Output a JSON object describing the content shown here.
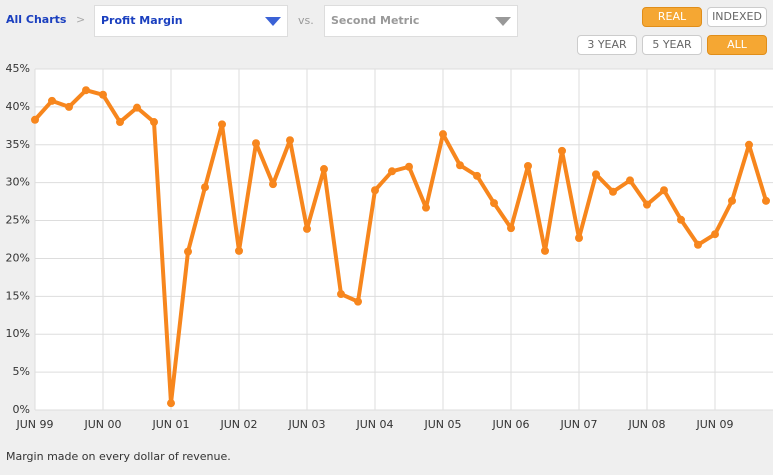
{
  "ui": {
    "breadcrumb": "All Charts",
    "separator": ">",
    "metric": "Profit Margin",
    "vs": "vs.",
    "second_metric": "Second Metric",
    "mode_buttons": [
      "REAL",
      "INDEXED"
    ],
    "range_buttons": [
      "3 YEAR",
      "5 YEAR",
      "ALL"
    ],
    "footer": "Margin made on every dollar of revenue."
  },
  "chart_data": {
    "type": "line",
    "color": "#f7861d",
    "grid": true,
    "categories": [
      "JUN 99",
      null,
      null,
      null,
      "JUN 00",
      null,
      null,
      null,
      "JUN 01",
      null,
      null,
      null,
      "JUN 02",
      null,
      null,
      null,
      "JUN 03",
      null,
      null,
      null,
      "JUN 04",
      null,
      null,
      null,
      "JUN 05",
      null,
      null,
      null,
      "JUN 06",
      null,
      null,
      null,
      "JUN 07",
      null,
      null,
      null,
      "JUN 08",
      null,
      null,
      null,
      "JUN 09",
      null,
      null,
      null
    ],
    "values": [
      38.3,
      40.8,
      40.0,
      42.2,
      41.6,
      38.0,
      39.9,
      38.0,
      0.9,
      20.9,
      29.4,
      37.7,
      21.0,
      35.2,
      29.8,
      35.6,
      23.9,
      31.8,
      15.3,
      14.3,
      29.0,
      31.5,
      32.1,
      26.7,
      36.4,
      32.3,
      30.9,
      27.3,
      24.0,
      32.2,
      21.0,
      34.2,
      22.7,
      31.1,
      28.8,
      30.3,
      27.1,
      29.0,
      25.1,
      21.8,
      23.2,
      27.6,
      35.0,
      27.6
    ],
    "ylim": [
      0,
      45
    ],
    "yticks": [
      {
        "value": 0,
        "label": "0%"
      },
      {
        "value": 5,
        "label": "5%"
      },
      {
        "value": 10,
        "label": "10%"
      },
      {
        "value": 15,
        "label": "15%"
      },
      {
        "value": 20,
        "label": "20%"
      },
      {
        "value": 25,
        "label": "25%"
      },
      {
        "value": 30,
        "label": "30%"
      },
      {
        "value": 35,
        "label": "35%"
      },
      {
        "value": 40,
        "label": "40%"
      },
      {
        "value": 45,
        "label": "45%"
      }
    ]
  }
}
